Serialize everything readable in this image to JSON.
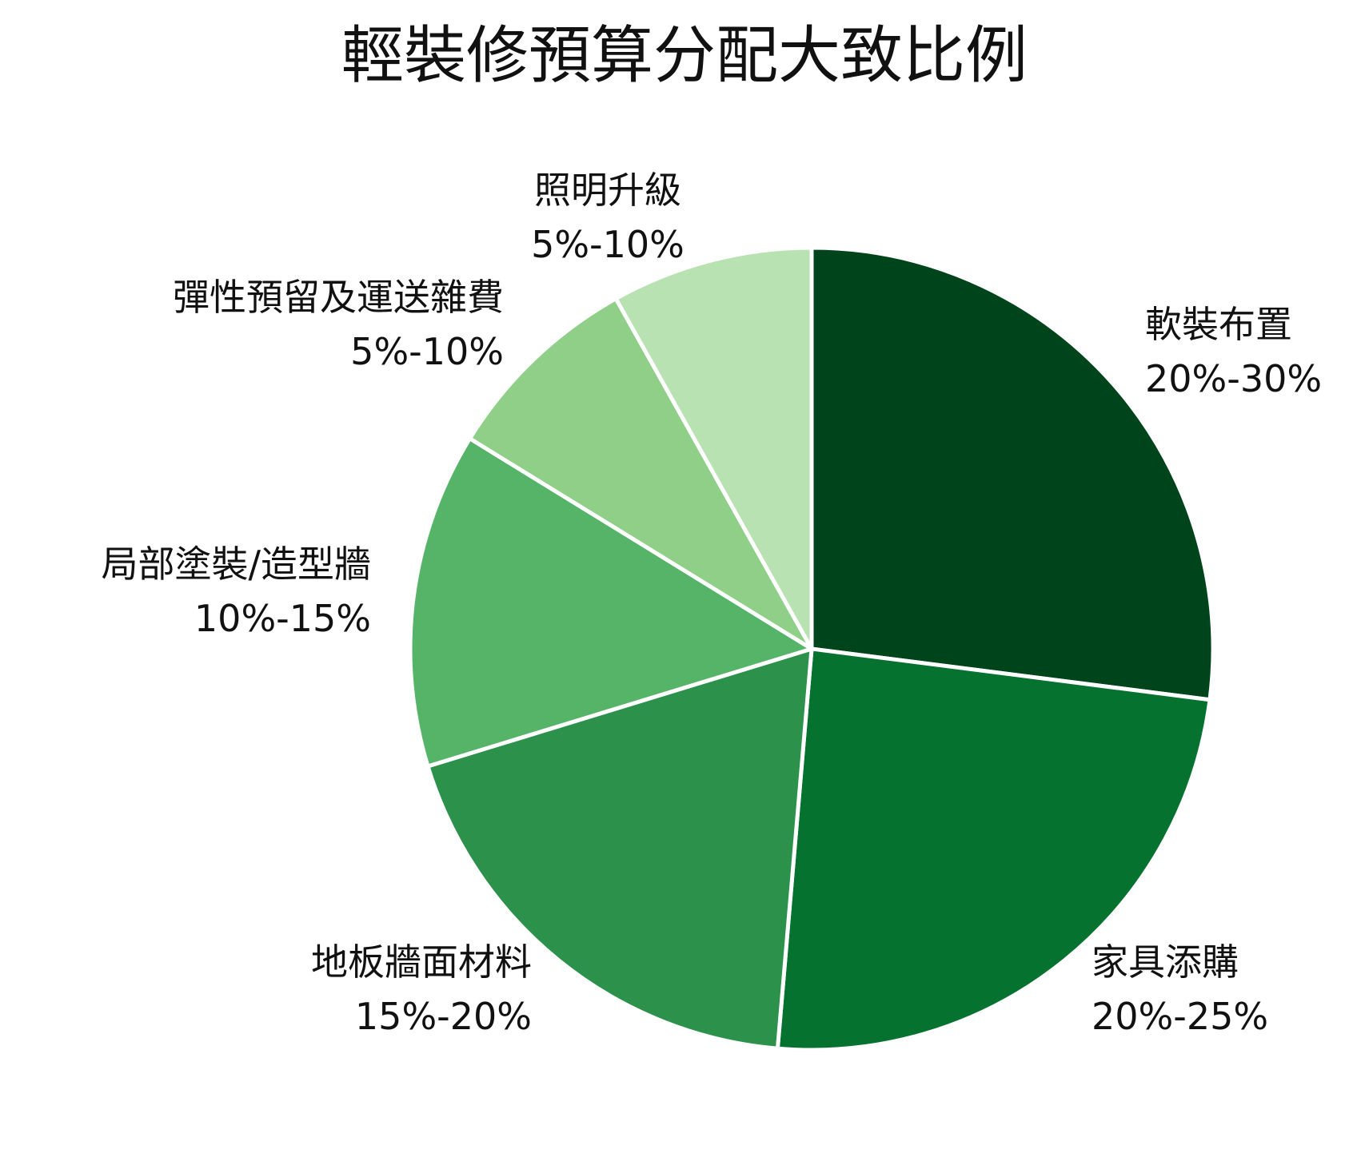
{
  "chart_data": {
    "type": "pie",
    "title": "輕裝修預算分配大致比例",
    "slices": [
      {
        "name": "軟裝布置",
        "range": "20%-30%",
        "value": 25,
        "color": "#00441b"
      },
      {
        "name": "家具添購",
        "range": "20%-25%",
        "value": 22.5,
        "color": "#067230"
      },
      {
        "name": "地板牆面材料",
        "range": "15%-20%",
        "value": 17.5,
        "color": "#2b914b"
      },
      {
        "name": "局部塗裝/造型牆",
        "range": "10%-15%",
        "value": 12.5,
        "color": "#55b468"
      },
      {
        "name": "彈性預留及運送雜費",
        "range": "5%-10%",
        "value": 7.5,
        "color": "#8fcf88"
      },
      {
        "name": "照明升級",
        "range": "5%-10%",
        "value": 7.5,
        "color": "#b9e2b2"
      }
    ],
    "start": "top",
    "direction": "clockwise"
  }
}
